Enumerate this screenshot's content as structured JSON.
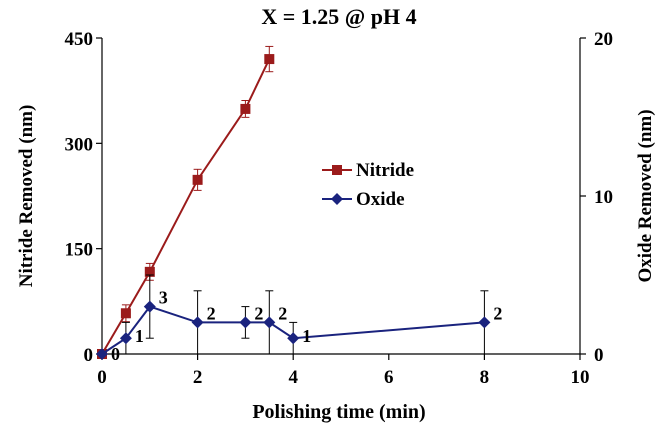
{
  "chart_data": {
    "type": "line",
    "title": "X = 1.25 @ pH 4",
    "xlabel": "Polishing time (min)",
    "ylabel_left": "Nitride Removed (nm)",
    "ylabel_right": "Oxide Removed (nm)",
    "xlim": [
      0,
      10
    ],
    "ylim_left": [
      0,
      450
    ],
    "ylim_right": [
      0,
      20
    ],
    "x_ticks": [
      0,
      2,
      4,
      6,
      8,
      10
    ],
    "y_left_ticks": [
      0,
      150,
      300,
      450
    ],
    "y_right_ticks": [
      0,
      10,
      20
    ],
    "grid": false,
    "legend_position": "center-right",
    "series": [
      {
        "name": "Nitride",
        "axis": "left",
        "color": "#9b1b1b",
        "marker": "square",
        "x": [
          0,
          0.5,
          1,
          2,
          3,
          3.5
        ],
        "y": [
          0,
          58,
          117,
          248,
          349,
          420
        ],
        "err": [
          0,
          12,
          12,
          15,
          12,
          18
        ]
      },
      {
        "name": "Oxide",
        "axis": "right",
        "color": "#1a237e",
        "marker": "diamond",
        "x": [
          0,
          0.5,
          1,
          2,
          3,
          3.5,
          4,
          8
        ],
        "y": [
          0,
          1,
          3,
          2,
          2,
          2,
          1,
          2
        ],
        "err": [
          0,
          1,
          2,
          2,
          1,
          2,
          1,
          2
        ],
        "labels": [
          "0",
          "1",
          "3",
          "2",
          "2",
          "2",
          "1",
          "2"
        ]
      }
    ]
  }
}
